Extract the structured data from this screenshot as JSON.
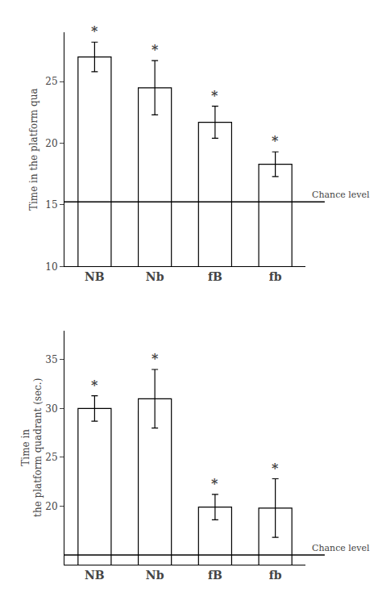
{
  "chart_data": [
    {
      "type": "bar",
      "categories": [
        "NB",
        "Nb",
        "fB",
        "fb"
      ],
      "values": [
        27.0,
        24.5,
        21.7,
        18.3
      ],
      "errors": [
        1.2,
        2.2,
        1.3,
        1.0
      ],
      "chance_level": 15.25,
      "chance_label": "Chance level",
      "annotations": [
        "*",
        "*",
        "*",
        "*"
      ],
      "y_label": "Time in the platform qua",
      "ylim": [
        10,
        29
      ],
      "yticks": [
        10,
        15,
        20,
        25
      ],
      "color": "white",
      "grid": false
    },
    {
      "type": "bar",
      "categories": [
        "NB",
        "Nb",
        "fB",
        "fb"
      ],
      "values": [
        30.0,
        31.0,
        19.9,
        19.8
      ],
      "errors": [
        1.3,
        3.0,
        1.3,
        3.0
      ],
      "chance_level": 15.0,
      "chance_label": "Chance level",
      "annotations": [
        "*",
        "*",
        "*",
        "*"
      ],
      "y_label": "Time in\nthe platform quadrant (sec.)",
      "ylim": [
        14,
        38
      ],
      "yticks": [
        20,
        25,
        30,
        35
      ],
      "color": "white",
      "grid": false
    }
  ]
}
